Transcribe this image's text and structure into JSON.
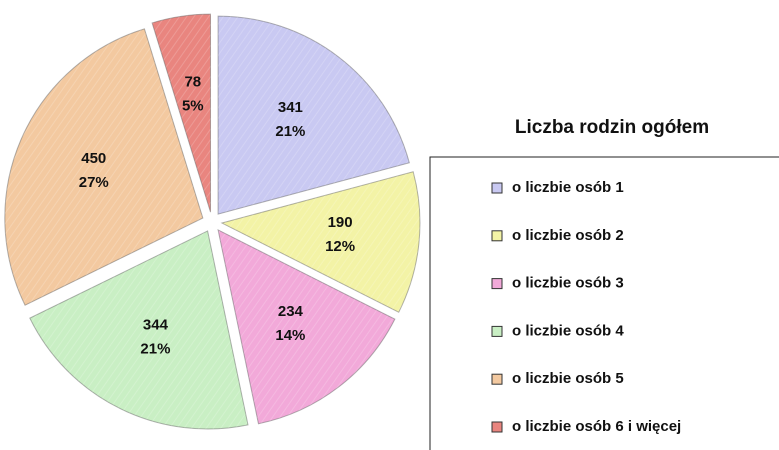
{
  "chart_data": {
    "type": "pie",
    "title": "Liczba rodzin ogółem",
    "categories": [
      "o liczbie osób 1",
      "o liczbie osób 2",
      "o liczbie osób 3",
      "o liczbie osób 4",
      "o liczbie osób 5",
      "o liczbie osób 6 i więcej"
    ],
    "values": [
      341,
      190,
      234,
      344,
      450,
      78
    ],
    "percent_labels": [
      "21%",
      "12%",
      "14%",
      "21%",
      "27%",
      "5%"
    ],
    "colors": [
      "#c9c9f2",
      "#f3f3a6",
      "#f2a9d9",
      "#c9efc4",
      "#f3c9a0",
      "#e9857f"
    ],
    "legend": "right"
  }
}
